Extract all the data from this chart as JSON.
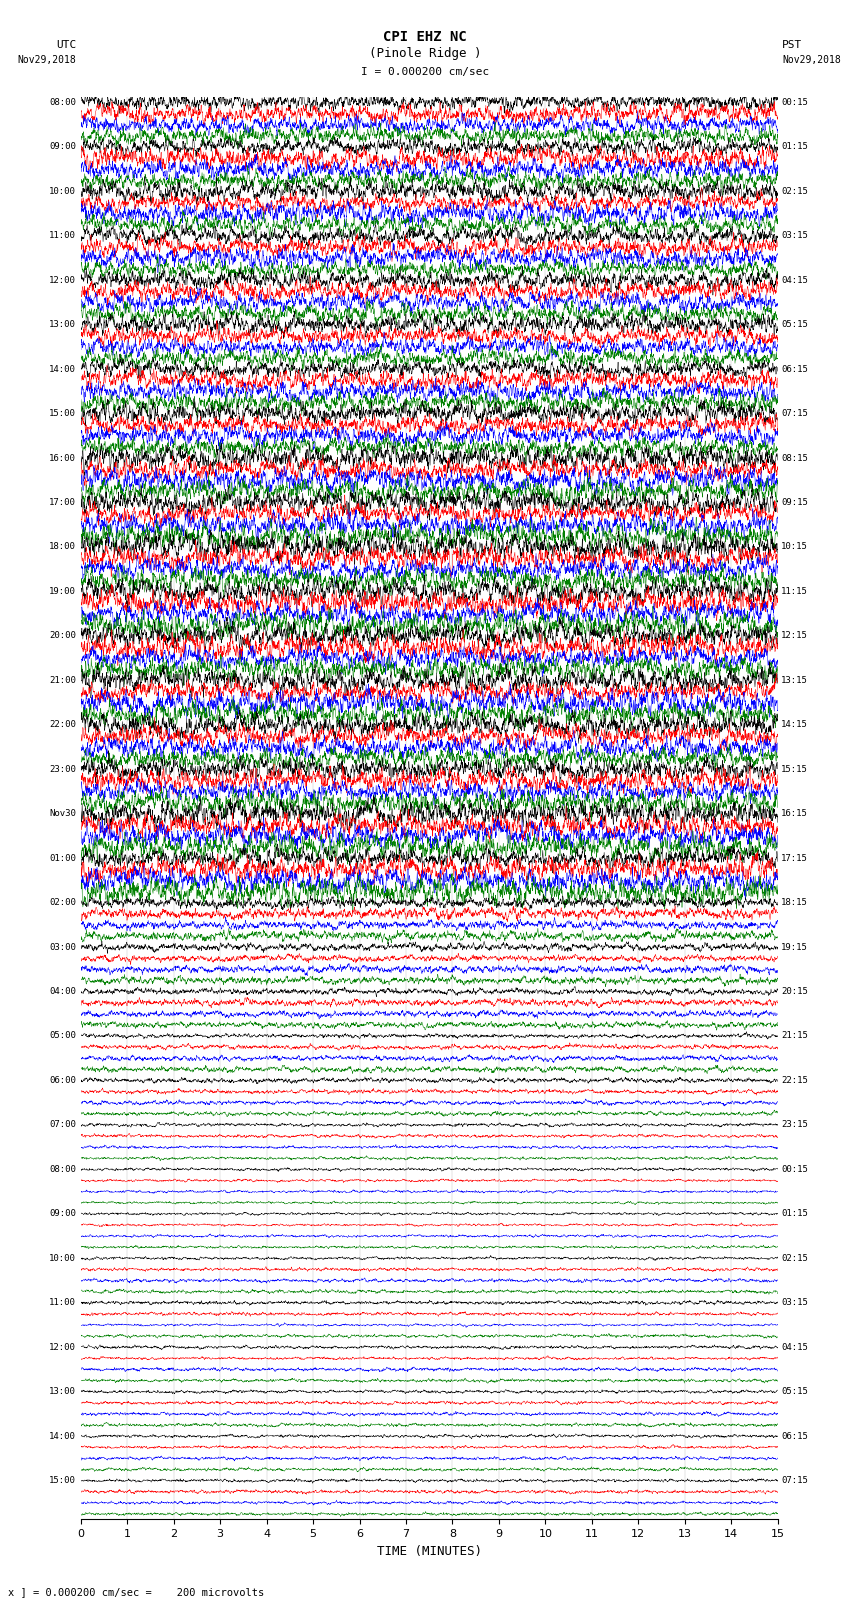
{
  "title_line1": "CPI EHZ NC",
  "title_line2": "(Pinole Ridge )",
  "scale_text": "I = 0.000200 cm/sec",
  "bottom_text": "x ] = 0.000200 cm/sec =    200 microvolts",
  "utc_label": "UTC",
  "utc_date": "Nov29,2018",
  "pst_label": "PST",
  "pst_date": "Nov29,2018",
  "xlabel": "TIME (MINUTES)",
  "xmin": 0,
  "xmax": 15,
  "xticks": [
    0,
    1,
    2,
    3,
    4,
    5,
    6,
    7,
    8,
    9,
    10,
    11,
    12,
    13,
    14,
    15
  ],
  "background_color": "#ffffff",
  "trace_colors": [
    "black",
    "red",
    "blue",
    "green"
  ],
  "n_rows": 32,
  "traces_per_row": 4,
  "figwidth": 8.5,
  "figheight": 16.13,
  "row_amplitudes": [
    2.5,
    2.8,
    2.8,
    2.8,
    2.8,
    2.8,
    2.8,
    2.8,
    3.5,
    3.5,
    3.5,
    3.5,
    3.5,
    3.5,
    3.5,
    3.5,
    3.5,
    3.5,
    1.5,
    1.2,
    1.0,
    0.8,
    0.7,
    0.5,
    0.4,
    0.4,
    0.5,
    0.5,
    0.5,
    0.5,
    0.5,
    0.5
  ],
  "utc_row_labels": [
    "08:00",
    "09:00",
    "10:00",
    "11:00",
    "12:00",
    "13:00",
    "14:00",
    "15:00",
    "16:00",
    "17:00",
    "18:00",
    "19:00",
    "20:00",
    "21:00",
    "22:00",
    "23:00",
    "Nov30",
    "01:00",
    "02:00",
    "03:00",
    "04:00",
    "05:00",
    "06:00",
    "07:00",
    "08:00",
    "09:00",
    "10:00",
    "11:00",
    "12:00",
    "13:00",
    "14:00",
    "15:00"
  ],
  "pst_row_labels": [
    "00:15",
    "01:15",
    "02:15",
    "03:15",
    "04:15",
    "05:15",
    "06:15",
    "07:15",
    "08:15",
    "09:15",
    "10:15",
    "11:15",
    "12:15",
    "13:15",
    "14:15",
    "15:15",
    "16:15",
    "17:15",
    "18:15",
    "19:15",
    "20:15",
    "21:15",
    "22:15",
    "23:15",
    "00:15",
    "01:15",
    "02:15",
    "03:15",
    "04:15",
    "05:15",
    "06:15",
    "07:15"
  ]
}
